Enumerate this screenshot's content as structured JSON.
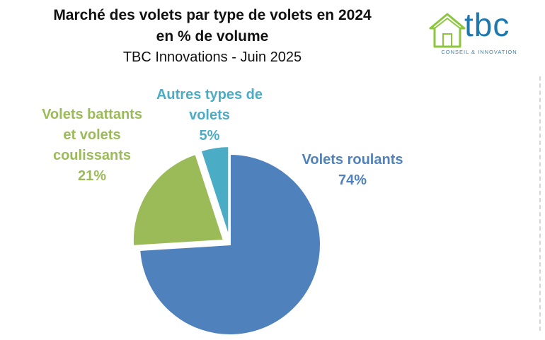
{
  "header": {
    "title_line1": "Marché des volets par type de volets en 2024",
    "title_line2": "en % de volume",
    "subtitle": "TBC Innovations - Juin 2025"
  },
  "logo": {
    "wordmark": "tbc",
    "tagline": "CONSEIL & INNOVATION",
    "colors": {
      "house": "#8cc63f",
      "text": "#1f78ad"
    }
  },
  "chart_data": {
    "type": "pie",
    "title": "Marché des volets par type de volets en 2024 en % de volume",
    "subtitle": "TBC Innovations - Juin 2025",
    "slices": [
      {
        "label_lines": [
          "Volets roulants"
        ],
        "value": 74,
        "value_label": "74%",
        "color": "#4f81bd",
        "exploded": false
      },
      {
        "label_lines": [
          "Volets battants",
          "et volets",
          "coulissants"
        ],
        "value": 21,
        "value_label": "21%",
        "color": "#9bbb59",
        "exploded": true
      },
      {
        "label_lines": [
          "Autres types de",
          "volets"
        ],
        "value": 5,
        "value_label": "5%",
        "color": "#4bacc6",
        "exploded": true
      }
    ],
    "start_angle": "12 o'clock, clockwise",
    "legend": "none, labels outside slices"
  }
}
